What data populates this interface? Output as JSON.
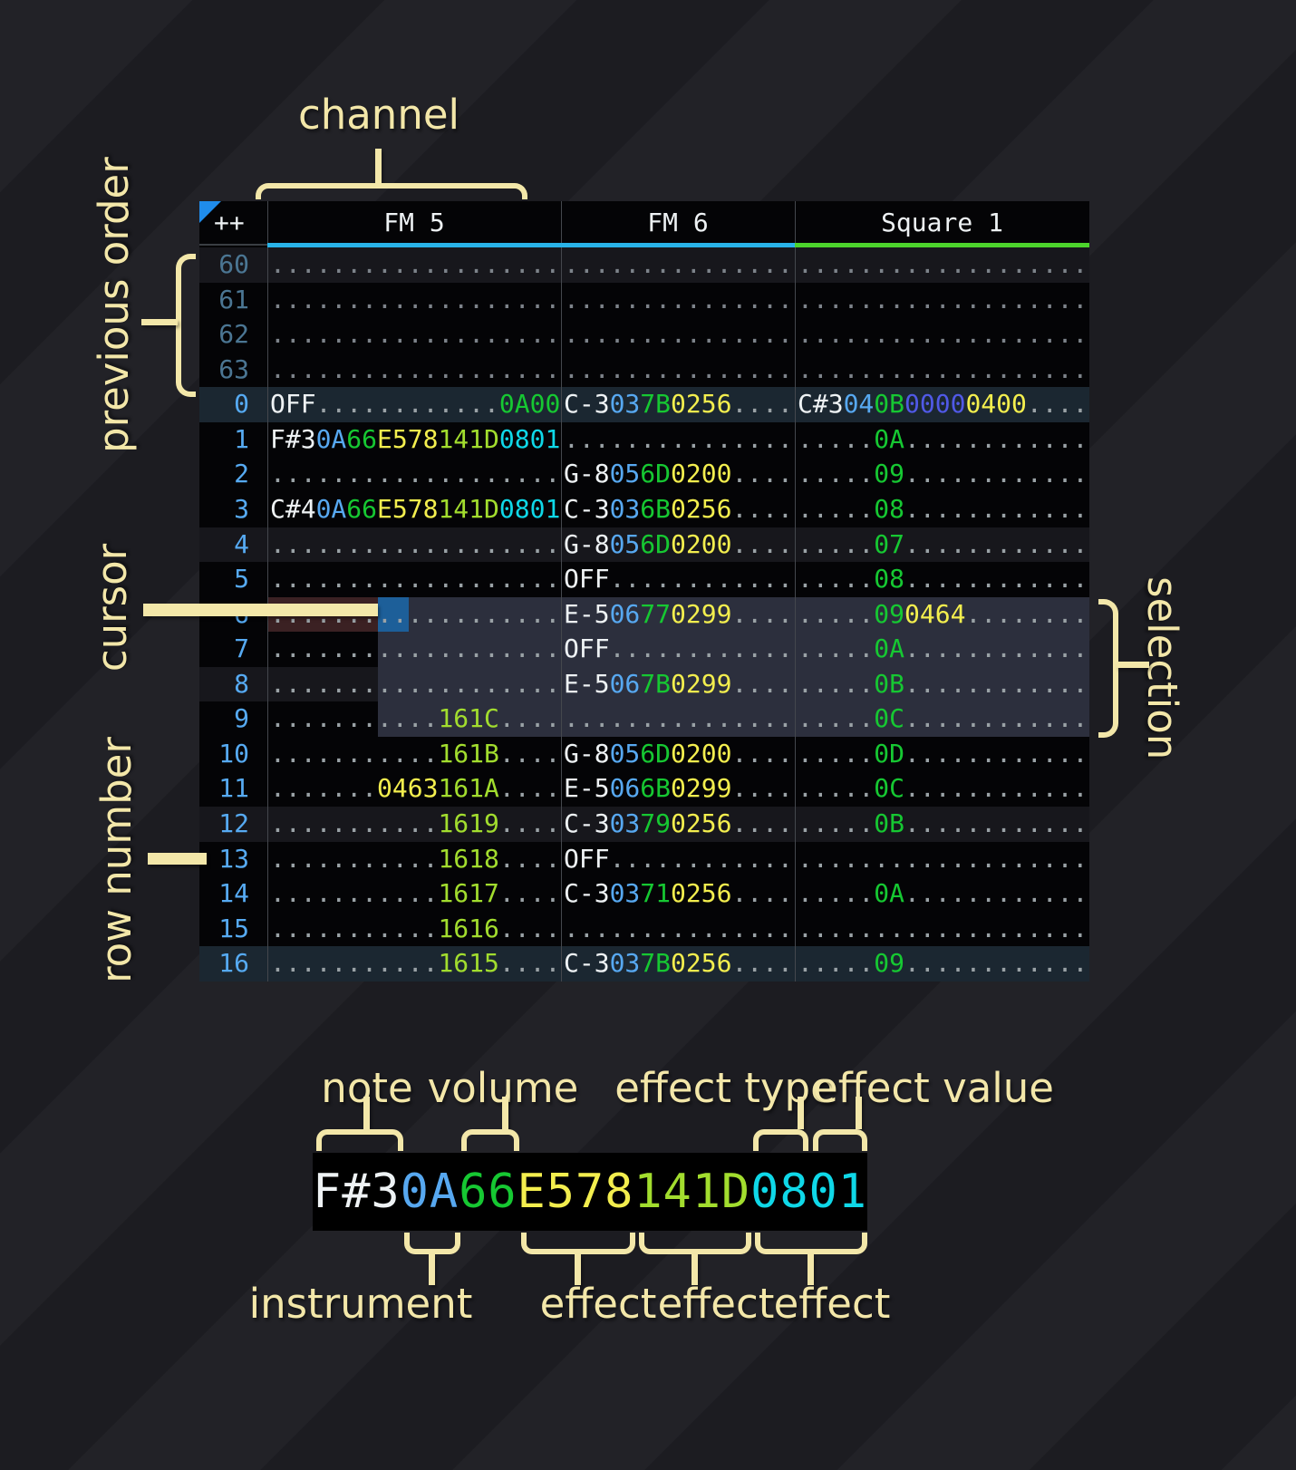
{
  "colors": {
    "note_white": "#eef2f4",
    "instrument_blue": "#57a8f0",
    "volume_green": "#16c832",
    "effect_yellow": "#f3ee4e",
    "effect_lime": "#a2dd2e",
    "effect_cyan": "#0fd8e8",
    "effect_indigo": "#5059e6",
    "dots_gray": "#9aa2a6",
    "row_number_blue": "#56aaf2",
    "row_number_dim": "#4b7693",
    "annotation_khaki": "#f3e7a9",
    "cursor_blue": "#1d5f99",
    "selection_slate": "#2c2f3d",
    "cursor_row_maroon": "#3b2123",
    "row_highlight_16": "#1b2731",
    "row_highlight_4": "#17171c",
    "underline_cyan": "#29b3e8",
    "underline_green": "#4cd42c"
  },
  "header": {
    "corner": "++",
    "channels": [
      {
        "key": "fm5",
        "name": "FM 5",
        "underline": "#29b3e8"
      },
      {
        "key": "fm6",
        "name": "FM 6",
        "underline": "#29b3e8"
      },
      {
        "key": "sq1",
        "name": "Square 1",
        "underline": "#4cd42c"
      }
    ]
  },
  "state": {
    "cursor": {
      "row": "6",
      "channel": "FM 5"
    },
    "selection_rows": [
      "6",
      "7",
      "8",
      "9"
    ],
    "previous_order_rows": [
      "60",
      "61",
      "62",
      "63"
    ]
  },
  "annotations": {
    "channel": "channel",
    "previous_order": "previous order",
    "cursor": "cursor",
    "row_number": "row number",
    "selection": "selection"
  },
  "legend": {
    "example": [
      [
        "F#3",
        "w"
      ],
      [
        "0A",
        "i"
      ],
      [
        "66",
        "v"
      ],
      [
        "E578",
        "y"
      ],
      [
        "141D",
        "l"
      ],
      [
        "0801",
        "c"
      ]
    ],
    "top_labels": [
      "note",
      "volume",
      "effect type",
      "effect value"
    ],
    "bottom_labels": [
      "instrument",
      "effect",
      "effect",
      "effect"
    ]
  },
  "rows": [
    {
      "n": "60",
      "dim": true,
      "hl": "h4",
      "fm5": [
        [
          19,
          "d"
        ]
      ],
      "fm6": [
        [
          15,
          "d"
        ]
      ],
      "sq1": [
        [
          19,
          "d"
        ]
      ]
    },
    {
      "n": "61",
      "dim": true,
      "hl": "",
      "fm5": [
        [
          19,
          "d"
        ]
      ],
      "fm6": [
        [
          15,
          "d"
        ]
      ],
      "sq1": [
        [
          19,
          "d"
        ]
      ]
    },
    {
      "n": "62",
      "dim": true,
      "hl": "",
      "fm5": [
        [
          19,
          "d"
        ]
      ],
      "fm6": [
        [
          15,
          "d"
        ]
      ],
      "sq1": [
        [
          19,
          "d"
        ]
      ]
    },
    {
      "n": "63",
      "dim": true,
      "hl": "",
      "fm5": [
        [
          19,
          "d"
        ]
      ],
      "fm6": [
        [
          15,
          "d"
        ]
      ],
      "sq1": [
        [
          19,
          "d"
        ]
      ]
    },
    {
      "n": "0",
      "hl": "h16",
      "fm5": [
        [
          "OFF",
          "w"
        ],
        [
          12,
          "d"
        ],
        [
          "0A00",
          "v"
        ]
      ],
      "fm6": [
        [
          "C-3",
          "w"
        ],
        [
          "03",
          "i"
        ],
        [
          "7B",
          "v"
        ],
        [
          "0256",
          "y"
        ],
        [
          4,
          "d"
        ]
      ],
      "sq1": [
        [
          "C#3",
          "w"
        ],
        [
          "04",
          "i"
        ],
        [
          "0B",
          "v"
        ],
        [
          "0000",
          "p"
        ],
        [
          "0400",
          "y"
        ],
        [
          4,
          "d"
        ]
      ]
    },
    {
      "n": "1",
      "hl": "",
      "fm5": [
        [
          "F#3",
          "w"
        ],
        [
          "0A",
          "i"
        ],
        [
          "66",
          "v"
        ],
        [
          "E578",
          "y"
        ],
        [
          "141D",
          "l"
        ],
        [
          "0801",
          "c"
        ]
      ],
      "fm6": [
        [
          15,
          "d"
        ]
      ],
      "sq1": [
        [
          5,
          "d"
        ],
        [
          "0A",
          "v"
        ],
        [
          12,
          "d"
        ]
      ]
    },
    {
      "n": "2",
      "hl": "",
      "fm5": [
        [
          19,
          "d"
        ]
      ],
      "fm6": [
        [
          "G-8",
          "w"
        ],
        [
          "05",
          "i"
        ],
        [
          "6D",
          "v"
        ],
        [
          "0200",
          "y"
        ],
        [
          4,
          "d"
        ]
      ],
      "sq1": [
        [
          5,
          "d"
        ],
        [
          "09",
          "v"
        ],
        [
          12,
          "d"
        ]
      ]
    },
    {
      "n": "3",
      "hl": "",
      "fm5": [
        [
          "C#4",
          "w"
        ],
        [
          "0A",
          "i"
        ],
        [
          "66",
          "v"
        ],
        [
          "E578",
          "y"
        ],
        [
          "141D",
          "l"
        ],
        [
          "0801",
          "c"
        ]
      ],
      "fm6": [
        [
          "C-3",
          "w"
        ],
        [
          "03",
          "i"
        ],
        [
          "6B",
          "v"
        ],
        [
          "0256",
          "y"
        ],
        [
          4,
          "d"
        ]
      ],
      "sq1": [
        [
          5,
          "d"
        ],
        [
          "08",
          "v"
        ],
        [
          12,
          "d"
        ]
      ]
    },
    {
      "n": "4",
      "hl": "h4",
      "fm5": [
        [
          19,
          "d"
        ]
      ],
      "fm6": [
        [
          "G-8",
          "w"
        ],
        [
          "05",
          "i"
        ],
        [
          "6D",
          "v"
        ],
        [
          "0200",
          "y"
        ],
        [
          4,
          "d"
        ]
      ],
      "sq1": [
        [
          5,
          "d"
        ],
        [
          "07",
          "v"
        ],
        [
          12,
          "d"
        ]
      ]
    },
    {
      "n": "5",
      "hl": "",
      "fm5": [
        [
          19,
          "d"
        ]
      ],
      "fm6": [
        [
          "OFF",
          "w"
        ],
        [
          12,
          "d"
        ]
      ],
      "sq1": [
        [
          5,
          "d"
        ],
        [
          "08",
          "v"
        ],
        [
          12,
          "d"
        ]
      ]
    },
    {
      "n": "6",
      "hl": "",
      "cursor_row": true,
      "fm5": [
        [
          19,
          "d"
        ]
      ],
      "fm6": [
        [
          "E-5",
          "w"
        ],
        [
          "06",
          "i"
        ],
        [
          "77",
          "v"
        ],
        [
          "0299",
          "y"
        ],
        [
          4,
          "d"
        ]
      ],
      "sq1": [
        [
          5,
          "d"
        ],
        [
          "09",
          "v"
        ],
        [
          "0464",
          "y"
        ],
        [
          8,
          "d"
        ]
      ]
    },
    {
      "n": "7",
      "hl": "",
      "fm5": [
        [
          19,
          "d"
        ]
      ],
      "fm6": [
        [
          "OFF",
          "w"
        ],
        [
          12,
          "d"
        ]
      ],
      "sq1": [
        [
          5,
          "d"
        ],
        [
          "0A",
          "v"
        ],
        [
          12,
          "d"
        ]
      ]
    },
    {
      "n": "8",
      "hl": "h4",
      "fm5": [
        [
          19,
          "d"
        ]
      ],
      "fm6": [
        [
          "E-5",
          "w"
        ],
        [
          "06",
          "i"
        ],
        [
          "7B",
          "v"
        ],
        [
          "0299",
          "y"
        ],
        [
          4,
          "d"
        ]
      ],
      "sq1": [
        [
          5,
          "d"
        ],
        [
          "0B",
          "v"
        ],
        [
          12,
          "d"
        ]
      ]
    },
    {
      "n": "9",
      "hl": "",
      "fm5": [
        [
          11,
          "d"
        ],
        [
          "161C",
          "l"
        ],
        [
          4,
          "d"
        ]
      ],
      "fm6": [
        [
          15,
          "d"
        ]
      ],
      "sq1": [
        [
          5,
          "d"
        ],
        [
          "0C",
          "v"
        ],
        [
          12,
          "d"
        ]
      ]
    },
    {
      "n": "10",
      "hl": "",
      "fm5": [
        [
          11,
          "d"
        ],
        [
          "161B",
          "l"
        ],
        [
          4,
          "d"
        ]
      ],
      "fm6": [
        [
          "G-8",
          "w"
        ],
        [
          "05",
          "i"
        ],
        [
          "6D",
          "v"
        ],
        [
          "0200",
          "y"
        ],
        [
          4,
          "d"
        ]
      ],
      "sq1": [
        [
          5,
          "d"
        ],
        [
          "0D",
          "v"
        ],
        [
          12,
          "d"
        ]
      ]
    },
    {
      "n": "11",
      "hl": "",
      "fm5": [
        [
          7,
          "d"
        ],
        [
          "0463",
          "y"
        ],
        [
          "161A",
          "l"
        ],
        [
          4,
          "d"
        ]
      ],
      "fm6": [
        [
          "E-5",
          "w"
        ],
        [
          "06",
          "i"
        ],
        [
          "6B",
          "v"
        ],
        [
          "0299",
          "y"
        ],
        [
          4,
          "d"
        ]
      ],
      "sq1": [
        [
          5,
          "d"
        ],
        [
          "0C",
          "v"
        ],
        [
          12,
          "d"
        ]
      ]
    },
    {
      "n": "12",
      "hl": "h4",
      "fm5": [
        [
          11,
          "d"
        ],
        [
          "1619",
          "l"
        ],
        [
          4,
          "d"
        ]
      ],
      "fm6": [
        [
          "C-3",
          "w"
        ],
        [
          "03",
          "i"
        ],
        [
          "79",
          "v"
        ],
        [
          "0256",
          "y"
        ],
        [
          4,
          "d"
        ]
      ],
      "sq1": [
        [
          5,
          "d"
        ],
        [
          "0B",
          "v"
        ],
        [
          12,
          "d"
        ]
      ]
    },
    {
      "n": "13",
      "hl": "",
      "fm5": [
        [
          11,
          "d"
        ],
        [
          "1618",
          "l"
        ],
        [
          4,
          "d"
        ]
      ],
      "fm6": [
        [
          "OFF",
          "w"
        ],
        [
          12,
          "d"
        ]
      ],
      "sq1": [
        [
          19,
          "d"
        ]
      ]
    },
    {
      "n": "14",
      "hl": "",
      "fm5": [
        [
          11,
          "d"
        ],
        [
          "1617",
          "l"
        ],
        [
          4,
          "d"
        ]
      ],
      "fm6": [
        [
          "C-3",
          "w"
        ],
        [
          "03",
          "i"
        ],
        [
          "71",
          "v"
        ],
        [
          "0256",
          "y"
        ],
        [
          4,
          "d"
        ]
      ],
      "sq1": [
        [
          5,
          "d"
        ],
        [
          "0A",
          "v"
        ],
        [
          12,
          "d"
        ]
      ]
    },
    {
      "n": "15",
      "hl": "",
      "fm5": [
        [
          11,
          "d"
        ],
        [
          "1616",
          "l"
        ],
        [
          4,
          "d"
        ]
      ],
      "fm6": [
        [
          15,
          "d"
        ]
      ],
      "sq1": [
        [
          19,
          "d"
        ]
      ]
    },
    {
      "n": "16",
      "hl": "h16",
      "fm5": [
        [
          11,
          "d"
        ],
        [
          "1615",
          "l"
        ],
        [
          4,
          "d"
        ]
      ],
      "fm6": [
        [
          "C-3",
          "w"
        ],
        [
          "03",
          "i"
        ],
        [
          "7B",
          "v"
        ],
        [
          "0256",
          "y"
        ],
        [
          4,
          "d"
        ]
      ],
      "sq1": [
        [
          5,
          "d"
        ],
        [
          "09",
          "v"
        ],
        [
          12,
          "d"
        ]
      ]
    }
  ]
}
